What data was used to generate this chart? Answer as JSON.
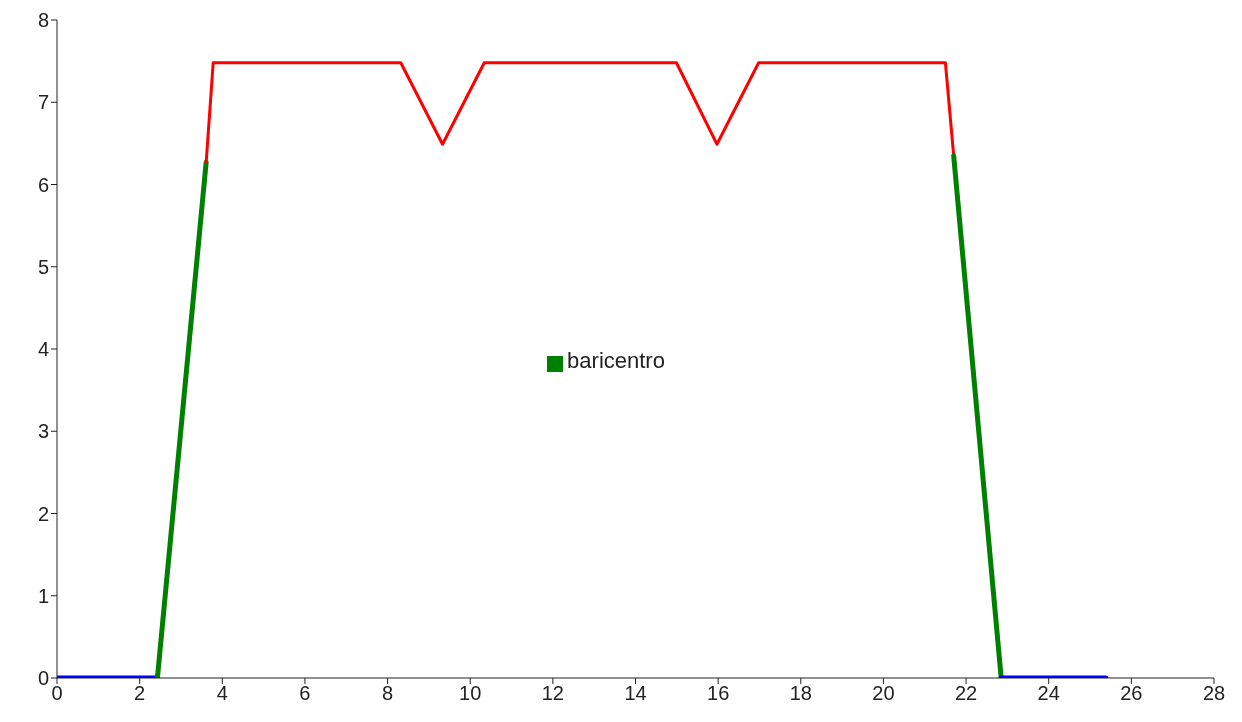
{
  "chart_data": {
    "type": "line",
    "xlim": [
      0,
      28
    ],
    "xticks": [
      0,
      2,
      4,
      6,
      8,
      10,
      12,
      14,
      16,
      18,
      20,
      22,
      24,
      26,
      28
    ],
    "ylim": [
      0,
      8
    ],
    "yticks": [
      0,
      1,
      2,
      3,
      4,
      5,
      6,
      7,
      8
    ],
    "grid": false,
    "legend": "center",
    "marker": "none",
    "line_style": "solid",
    "series": [
      {
        "color": "#0000ff",
        "x": [
          0,
          2.43
        ],
        "values": [
          0,
          0
        ]
      },
      {
        "name": "baricentro",
        "color": "#008000",
        "x": [
          2.43,
          3.61
        ],
        "values": [
          0,
          6.27
        ]
      },
      {
        "color": "#ff0000",
        "x": [
          3.61,
          3.78,
          6.09,
          8.32,
          9.33,
          10.34,
          14.99,
          15.97,
          16.98,
          19.24,
          21.5,
          21.7
        ],
        "values": [
          6.27,
          7.48,
          7.48,
          7.48,
          6.49,
          7.48,
          7.48,
          6.49,
          7.48,
          7.48,
          7.48,
          6.35
        ]
      },
      {
        "color": "#008000",
        "x": [
          21.7,
          22.85
        ],
        "values": [
          6.35,
          0
        ]
      },
      {
        "color": "#0000ff",
        "x": [
          22.85,
          25.38
        ],
        "values": [
          0,
          0
        ]
      }
    ]
  }
}
